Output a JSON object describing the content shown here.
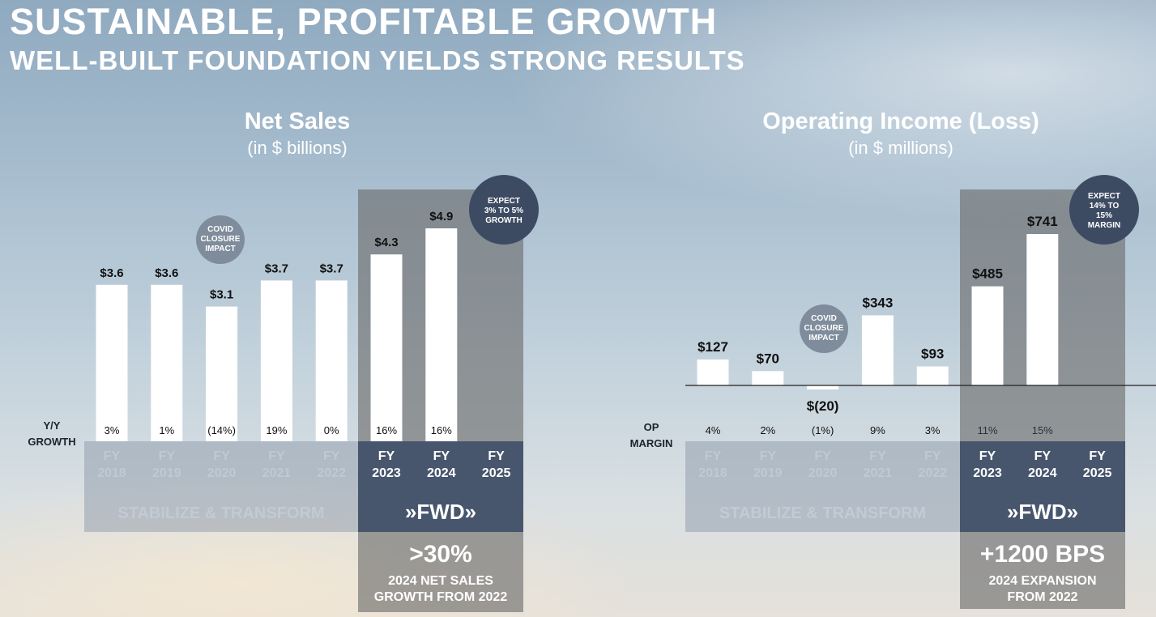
{
  "header": {
    "title": "SUSTAINABLE, PROFITABLE GROWTH",
    "subtitle": "WELL-BUILT FOUNDATION YIELDS STRONG RESULTS"
  },
  "colors": {
    "bar": "#ffffff",
    "fwd_panel": "#44536b",
    "highlight_panel": "#6b6b6b",
    "badge": "#3d4b62",
    "covid_badge": "#7f8c9b",
    "stabilize_text": "#c3cdd8"
  },
  "chart_data": [
    {
      "type": "bar",
      "title": "Net Sales",
      "unit": "(in $ billions)",
      "categories": [
        "FY 2018",
        "FY 2019",
        "FY 2020",
        "FY 2021",
        "FY 2022",
        "FY 2023",
        "FY 2024",
        "FY 2025"
      ],
      "category_lines": [
        [
          "FY",
          "2018"
        ],
        [
          "FY",
          "2019"
        ],
        [
          "FY",
          "2020"
        ],
        [
          "FY",
          "2021"
        ],
        [
          "FY",
          "2022"
        ],
        [
          "FY",
          "2023"
        ],
        [
          "FY",
          "2024"
        ],
        [
          "FY",
          "2025"
        ]
      ],
      "values": [
        3.6,
        3.6,
        3.1,
        3.7,
        3.7,
        4.3,
        4.9,
        null
      ],
      "data_labels": [
        "$3.6",
        "$3.6",
        "$3.1",
        "$3.7",
        "$3.7",
        "$4.3",
        "$4.9",
        ""
      ],
      "row_label": [
        "Y/Y",
        "GROWTH"
      ],
      "row_values": [
        "3%",
        "1%",
        "(14%)",
        "19%",
        "0%",
        "16%",
        "16%",
        ""
      ],
      "ylim": [
        0,
        4.9
      ],
      "covid_note": [
        "COVID",
        "CLOSURE",
        "IMPACT"
      ],
      "expect_note": [
        "EXPECT",
        "3% TO 5%",
        "GROWTH"
      ],
      "stabilize_label": "STABILIZE & TRANSFORM",
      "fwd_label": "»FWD»",
      "highlight_value": ">30%",
      "highlight_text": [
        "2024 NET SALES",
        "GROWTH FROM 2022"
      ]
    },
    {
      "type": "bar",
      "title": "Operating Income (Loss)",
      "unit": "(in $ millions)",
      "categories": [
        "FY 2018",
        "FY 2019",
        "FY 2020",
        "FY 2021",
        "FY 2022",
        "FY 2023",
        "FY 2024",
        "FY 2025"
      ],
      "category_lines": [
        [
          "FY",
          "2018"
        ],
        [
          "FY",
          "2019"
        ],
        [
          "FY",
          "2020"
        ],
        [
          "FY",
          "2021"
        ],
        [
          "FY",
          "2022"
        ],
        [
          "FY",
          "2023"
        ],
        [
          "FY",
          "2024"
        ],
        [
          "FY",
          "2025"
        ]
      ],
      "values": [
        127,
        70,
        -20,
        343,
        93,
        485,
        741,
        null
      ],
      "data_labels": [
        "$127",
        "$70",
        "$(20)",
        "$343",
        "$93",
        "$485",
        "$741",
        ""
      ],
      "row_label": [
        "OP",
        "MARGIN"
      ],
      "row_values": [
        "4%",
        "2%",
        "(1%)",
        "9%",
        "3%",
        "11%",
        "15%",
        ""
      ],
      "ylim": [
        -20,
        741
      ],
      "covid_note": [
        "COVID",
        "CLOSURE",
        "IMPACT"
      ],
      "expect_note": [
        "EXPECT",
        "14% TO",
        "15%",
        "MARGIN"
      ],
      "stabilize_label": "STABILIZE & TRANSFORM",
      "fwd_label": "»FWD»",
      "highlight_value": "+1200 BPS",
      "highlight_text": [
        "2024 EXPANSION",
        "FROM 2022"
      ]
    }
  ]
}
